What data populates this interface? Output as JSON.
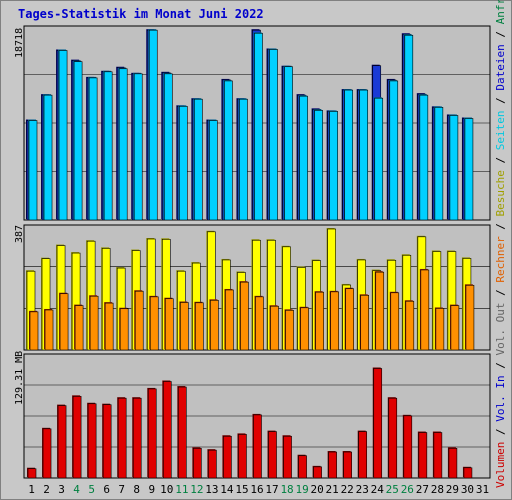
{
  "title": "Tages-Statistik im Monat Juni 2022",
  "panels": {
    "top_max": "18718",
    "mid_max": "387",
    "bottom_max": "129.31 MB"
  },
  "legend": {
    "separator": " / ",
    "items": [
      {
        "label": "Volumen",
        "color": "#cc0000"
      },
      {
        "label": "Vol. In",
        "color": "#0000cc"
      },
      {
        "label": "Vol. Out",
        "color": "#666666"
      },
      {
        "label": "Rechner",
        "color": "#e06000"
      },
      {
        "label": "Besuche",
        "color": "#a0a000"
      },
      {
        "label": "Seiten",
        "color": "#00c8e0"
      },
      {
        "label": "Dateien",
        "color": "#0000cc"
      },
      {
        "label": "Anfragen",
        "color": "#008040"
      }
    ]
  },
  "colors": {
    "anfragen": "#1a3ad6",
    "dateien": "#00d0ff",
    "seiten": "#00d0ff",
    "besuche": "#ffff00",
    "rechner": "#ff9000",
    "volumen": "#e00000",
    "weekend_label": "#008040",
    "day_label": "#000000"
  },
  "chart_data": {
    "type": "bar",
    "categories": [
      "1",
      "2",
      "3",
      "4",
      "5",
      "6",
      "7",
      "8",
      "9",
      "10",
      "11",
      "12",
      "13",
      "14",
      "15",
      "16",
      "17",
      "18",
      "19",
      "20",
      "21",
      "22",
      "23",
      "24",
      "25",
      "26",
      "27",
      "28",
      "29",
      "30",
      "31"
    ],
    "weekend_days": [
      "4",
      "5",
      "11",
      "12",
      "18",
      "19",
      "25",
      "26"
    ],
    "panels": [
      {
        "name": "requests",
        "ylim": [
          0,
          18718
        ],
        "series": [
          {
            "name": "Anfragen",
            "values": [
              9800,
              12300,
              16700,
              15700,
              14000,
              14600,
              15000,
              14400,
              18700,
              14500,
              11200,
              11900,
              9800,
              13800,
              11900,
              18700,
              16800,
              15100,
              12300,
              10900,
              10700,
              12800,
              12800,
              15200,
              13800,
              18300,
              12400,
              11100,
              10300,
              10000,
              0
            ]
          },
          {
            "name": "Dateien",
            "values": [
              9800,
              12300,
              16700,
              15600,
              14000,
              14600,
              14900,
              14400,
              18700,
              14400,
              11200,
              11900,
              9800,
              13700,
              11900,
              18400,
              16800,
              15100,
              12200,
              10800,
              10700,
              12800,
              12800,
              12000,
              13700,
              18200,
              12300,
              11100,
              10300,
              10000,
              0
            ]
          }
        ]
      },
      {
        "name": "visits",
        "ylim": [
          0,
          387
        ],
        "series": [
          {
            "name": "Besuche",
            "values": [
              252,
              292,
              334,
              310,
              348,
              325,
              262,
              318,
              355,
              354,
              252,
              278,
              378,
              288,
              248,
              351,
              351,
              330,
              264,
              286,
              387,
              208,
              288,
              254,
              287,
              303,
              362,
              315,
              315,
              293,
              0
            ]
          },
          {
            "name": "Rechner",
            "values": [
              122,
              128,
              180,
              142,
              172,
              150,
              132,
              188,
              170,
              164,
              152,
              151,
              159,
              192,
              217,
              170,
              140,
              127,
              135,
              185,
              186,
              196,
              175,
              249,
              183,
              156,
              256,
              133,
              142,
              207,
              0
            ]
          }
        ]
      },
      {
        "name": "volume",
        "ylim": [
          0,
          129.31
        ],
        "unit": "MB",
        "series": [
          {
            "name": "Volumen",
            "values": [
              10,
              53,
              78,
              88,
              80,
              79,
              86,
              86,
              96,
              104,
              98,
              32,
              30,
              45,
              47,
              68,
              50,
              45,
              24,
              12,
              28,
              28,
              50,
              118,
              86,
              67,
              49,
              49,
              32,
              11,
              0
            ]
          }
        ]
      }
    ]
  }
}
